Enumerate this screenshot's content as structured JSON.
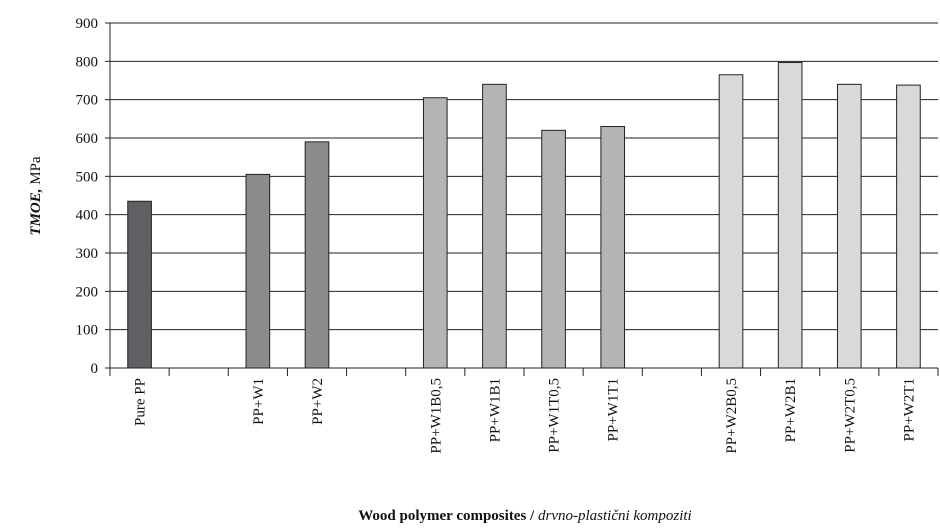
{
  "chart_data": {
    "type": "bar",
    "ylabel": {
      "emphasis": "TMOE,",
      "unit": "MPa"
    },
    "xlabel": {
      "bold": "Wood polymer composites /",
      "italic": "drvno-plastični kompoziti"
    },
    "categories": [
      "Pure PP",
      null,
      "PP+W1",
      "PP+W2",
      null,
      "PP+W1B0,5",
      "PP+W1B1",
      "PP+W1T0,5",
      "PP+W1T1",
      null,
      "PP+W2B0,5",
      "PP+W2B1",
      "PP+W2T0,5",
      "PP+W2T1"
    ],
    "values": [
      435,
      null,
      505,
      590,
      null,
      705,
      740,
      620,
      630,
      null,
      765,
      797,
      740,
      738
    ],
    "colors": [
      "#606064",
      null,
      "#8c8c8e",
      "#8c8c8e",
      null,
      "#b4b4b6",
      "#b4b4b6",
      "#b4b4b6",
      "#b4b4b6",
      null,
      "#d9d9da",
      "#d9d9da",
      "#d9d9da",
      "#d9d9da"
    ],
    "ylim": [
      0,
      900
    ],
    "yticks": [
      0,
      100,
      200,
      300,
      400,
      500,
      600,
      700,
      800,
      900
    ],
    "grid": true
  }
}
